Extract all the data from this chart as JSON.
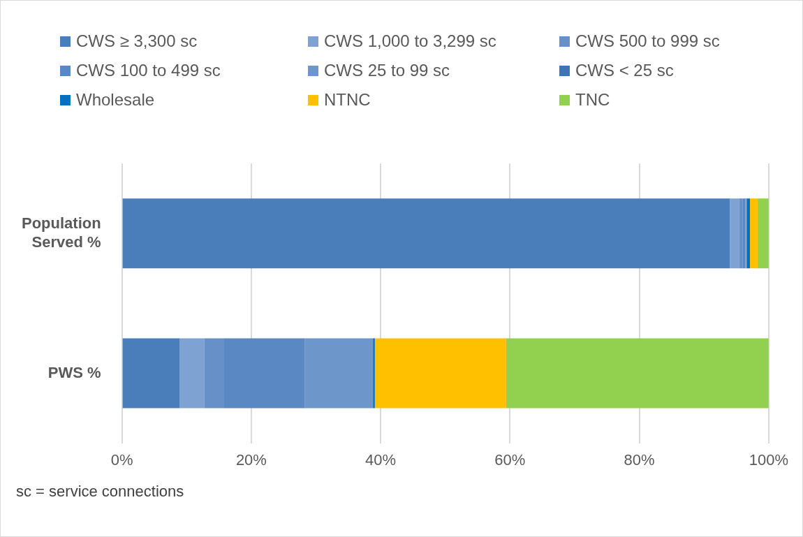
{
  "chart_data": {
    "type": "bar",
    "orientation": "horizontal",
    "stacked": true,
    "categories": [
      "Population Served %",
      "PWS %"
    ],
    "series": [
      {
        "name": "CWS ≥ 3,300 sc",
        "color": "#4a7ebb",
        "values": [
          94.0,
          8.9
        ]
      },
      {
        "name": "CWS 1,000 to 3,299 sc",
        "color": "#7ea3d2",
        "values": [
          1.4,
          3.8
        ]
      },
      {
        "name": "CWS 500 to 999 sc",
        "color": "#6890c8",
        "values": [
          0.6,
          3.0
        ]
      },
      {
        "name": "CWS 100 to 499 sc",
        "color": "#5a88c2",
        "values": [
          0.4,
          12.6
        ]
      },
      {
        "name": "CWS 25 to 99 sc",
        "color": "#6d96cb",
        "values": [
          0.1,
          10.5
        ]
      },
      {
        "name": "CWS < 25 sc",
        "color": "#3f74b5",
        "values": [
          0.1,
          0.1
        ]
      },
      {
        "name": "Wholesale",
        "color": "#0070c0",
        "values": [
          0.5,
          0.2
        ]
      },
      {
        "name": "NTNC",
        "color": "#ffc000",
        "values": [
          1.2,
          20.3
        ]
      },
      {
        "name": "TNC",
        "color": "#92d050",
        "values": [
          1.7,
          40.6
        ]
      }
    ],
    "xlim": [
      0,
      100
    ],
    "xticks": [
      {
        "value": 0,
        "label": "0%"
      },
      {
        "value": 20,
        "label": "20%"
      },
      {
        "value": 40,
        "label": "40%"
      },
      {
        "value": 60,
        "label": "60%"
      },
      {
        "value": 80,
        "label": "80%"
      },
      {
        "value": 100,
        "label": "100%"
      }
    ],
    "grid": "x",
    "legend": "top",
    "annotations": [
      "sc = service connections"
    ]
  }
}
